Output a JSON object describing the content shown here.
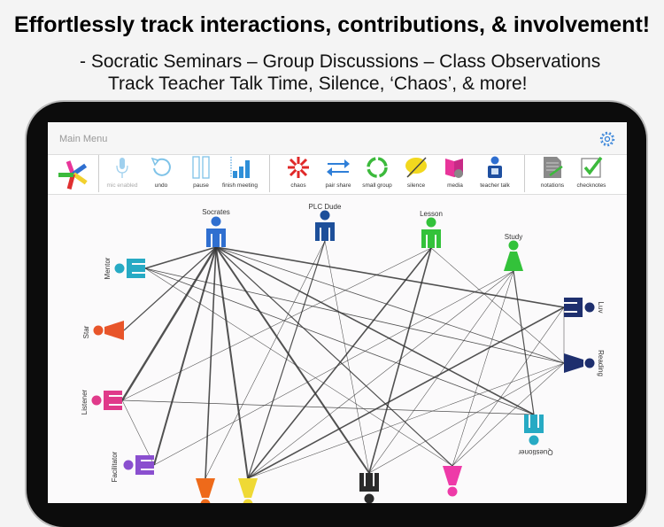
{
  "promo": {
    "headline": "Effortlessly track interactions, contributions, & involvement!",
    "line1": "- Socratic Seminars – Group Discussions – Class Observations",
    "line2": "Track Teacher Talk Time, Silence, ‘Chaos’, & more!"
  },
  "navbar": {
    "title": "Main Menu",
    "settings_icon": "gear-icon"
  },
  "toolbar": {
    "items": [
      {
        "label": "mic enabled",
        "icon": "microphone-icon",
        "enabled": false
      },
      {
        "label": "undo",
        "icon": "undo-icon"
      },
      {
        "label": "pause",
        "icon": "pause-icon"
      },
      {
        "label": "finish meeting",
        "icon": "bar-chart-icon"
      },
      {
        "label": "chaos",
        "icon": "chaos-icon"
      },
      {
        "label": "pair share",
        "icon": "pair-share-icon"
      },
      {
        "label": "small group",
        "icon": "small-group-icon"
      },
      {
        "label": "silence",
        "icon": "silence-icon"
      },
      {
        "label": "media",
        "icon": "media-icon"
      },
      {
        "label": "teacher talk",
        "icon": "teacher-talk-icon"
      },
      {
        "label": "notations",
        "icon": "notations-icon"
      },
      {
        "label": "checknotes",
        "icon": "checknotes-icon"
      }
    ]
  },
  "participants": [
    {
      "id": "socrates",
      "label": "Socrates",
      "color": "#2f6fd0"
    },
    {
      "id": "plc",
      "label": "PLC Dude",
      "color": "#1d4f9a"
    },
    {
      "id": "lesson",
      "label": "Lesson",
      "color": "#33c23a"
    },
    {
      "id": "study",
      "label": "Study",
      "color": "#33c23a"
    },
    {
      "id": "mentor",
      "label": "Mentor",
      "color": "#27aac4"
    },
    {
      "id": "star",
      "label": "Star",
      "color": "#e8552a"
    },
    {
      "id": "listener",
      "label": "Listener",
      "color": "#e03a8a"
    },
    {
      "id": "facilitator",
      "label": "Facilitator",
      "color": "#8a4fcf"
    },
    {
      "id": "orange",
      "label": "",
      "color": "#ee6a1a"
    },
    {
      "id": "yellow",
      "label": "",
      "color": "#efd935"
    },
    {
      "id": "black",
      "label": "",
      "color": "#2a2a2a"
    },
    {
      "id": "pink",
      "label": "",
      "color": "#ee3aa8"
    },
    {
      "id": "questioner",
      "label": "Questioner",
      "color": "#27aac4"
    },
    {
      "id": "reading",
      "label": "Reading",
      "color": "#1e2f6e"
    },
    {
      "id": "luv",
      "label": "Luv",
      "color": "#1e2f6e"
    }
  ],
  "interactions": [
    [
      "socrates",
      "mentor",
      2
    ],
    [
      "socrates",
      "star",
      1.5
    ],
    [
      "socrates",
      "listener",
      3
    ],
    [
      "socrates",
      "facilitator",
      2.5
    ],
    [
      "socrates",
      "orange",
      2
    ],
    [
      "socrates",
      "yellow",
      2.5
    ],
    [
      "socrates",
      "black",
      2.5
    ],
    [
      "socrates",
      "pink",
      1.5
    ],
    [
      "socrates",
      "questioner",
      2
    ],
    [
      "socrates",
      "luv",
      2
    ],
    [
      "socrates",
      "reading",
      1
    ],
    [
      "mentor",
      "reading",
      1
    ],
    [
      "mentor",
      "questioner",
      1
    ],
    [
      "mentor",
      "pink",
      0.7
    ],
    [
      "plc",
      "yellow",
      1.5
    ],
    [
      "plc",
      "orange",
      0.7
    ],
    [
      "plc",
      "black",
      0.7
    ],
    [
      "lesson",
      "black",
      2
    ],
    [
      "lesson",
      "yellow",
      2
    ],
    [
      "lesson",
      "listener",
      0.7
    ],
    [
      "lesson",
      "reading",
      0.7
    ],
    [
      "study",
      "questioner",
      1.5
    ],
    [
      "study",
      "yellow",
      0.7
    ],
    [
      "study",
      "black",
      0.7
    ],
    [
      "study",
      "pink",
      0.7
    ],
    [
      "study",
      "facilitator",
      0.7
    ],
    [
      "luv",
      "yellow",
      2
    ],
    [
      "luv",
      "reading",
      0.7
    ],
    [
      "luv",
      "pink",
      0.7
    ],
    [
      "reading",
      "black",
      0.7
    ],
    [
      "reading",
      "pink",
      0.7
    ],
    [
      "reading",
      "yellow",
      0.7
    ],
    [
      "listener",
      "questioner",
      1
    ],
    [
      "listener",
      "facilitator",
      0.7
    ]
  ]
}
